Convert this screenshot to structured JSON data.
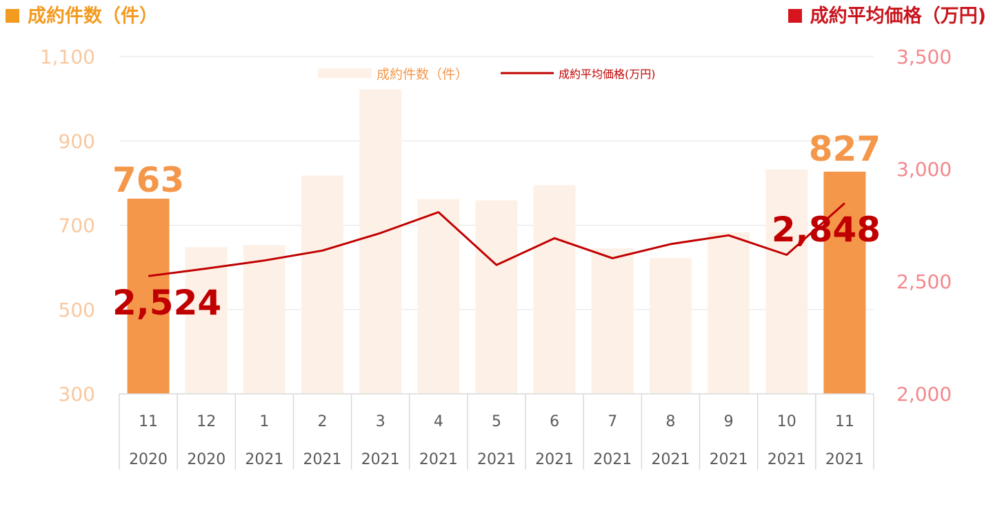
{
  "headers": {
    "left": "成約件数（件）",
    "right": "成約平均価格（万円)"
  },
  "colors": {
    "highlight_bar": "#f5974a",
    "faded_bar": "#fdf1e7",
    "line": "#c00000",
    "left_axis_text": "#f8c89e",
    "right_axis_text": "#f4878c",
    "bar_label": "#f5974a",
    "line_label": "#c00000",
    "grid": "#e3e3e3",
    "axis_text": "#595959"
  },
  "legend": {
    "bar": "成約件数（件）",
    "line": "成約平均価格(万円)"
  },
  "chart_data": {
    "type": "bar",
    "categories": [
      [
        "11",
        "2020"
      ],
      [
        "12",
        "2020"
      ],
      [
        "1",
        "2021"
      ],
      [
        "2",
        "2021"
      ],
      [
        "3",
        "2021"
      ],
      [
        "4",
        "2021"
      ],
      [
        "5",
        "2021"
      ],
      [
        "6",
        "2021"
      ],
      [
        "7",
        "2021"
      ],
      [
        "8",
        "2021"
      ],
      [
        "9",
        "2021"
      ],
      [
        "10",
        "2021"
      ],
      [
        "11",
        "2021"
      ]
    ],
    "highlight_indices": [
      0,
      12
    ],
    "series": [
      {
        "name": "成約件数（件）",
        "type": "bar",
        "axis": "left",
        "values": [
          763,
          648,
          653,
          818,
          1022,
          762,
          759,
          795,
          645,
          622,
          683,
          832,
          827
        ]
      },
      {
        "name": "成約平均価格(万円)",
        "type": "line",
        "axis": "right",
        "values": [
          2524,
          2557,
          2593,
          2637,
          2715,
          2808,
          2573,
          2692,
          2603,
          2666,
          2705,
          2618,
          2848
        ]
      }
    ],
    "left_axis": {
      "range": [
        300,
        1100
      ],
      "ticks": [
        "1,100",
        "900",
        "700",
        "500",
        "300"
      ],
      "tick_values": [
        1100,
        900,
        700,
        500,
        300
      ]
    },
    "right_axis": {
      "range": [
        2000,
        3500
      ],
      "ticks": [
        "3,500",
        "3,000",
        "2,500",
        "2,000"
      ],
      "tick_values": [
        3500,
        3000,
        2500,
        2000
      ]
    },
    "annotations": {
      "bar_first": "763",
      "bar_last": "827",
      "line_first": "2,524",
      "line_last": "2,848"
    },
    "grid": true,
    "legend_position": "top-center"
  }
}
